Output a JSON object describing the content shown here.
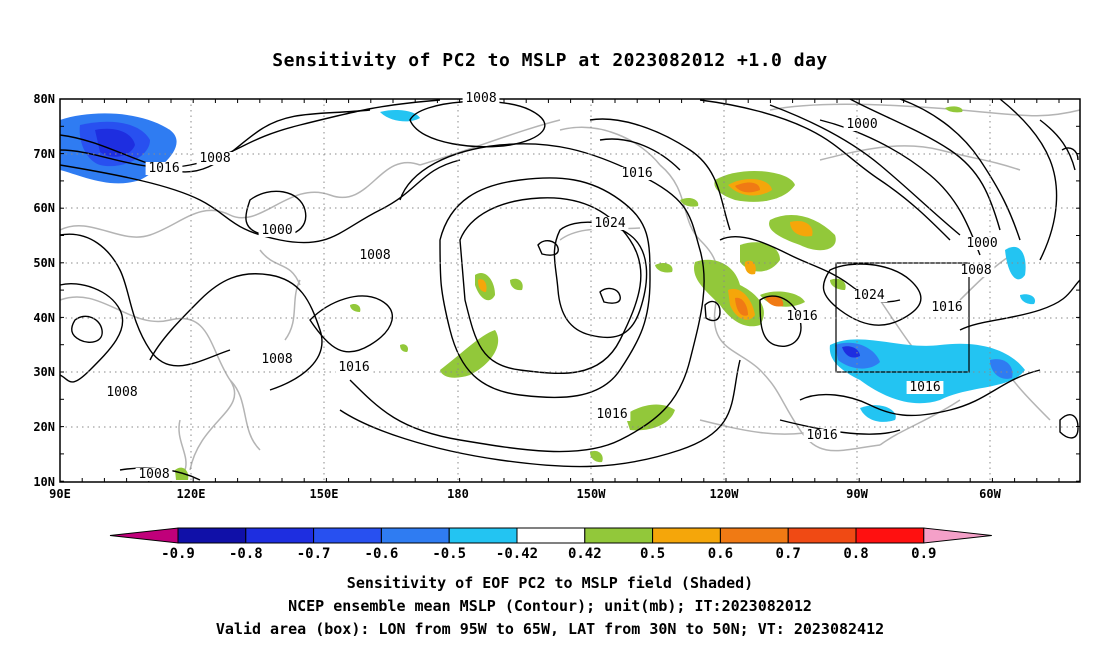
{
  "title": "Sensitivity of PC2 to MSLP at 2023082012 +1.0 day",
  "lat_labels": [
    "80N",
    "70N",
    "60N",
    "50N",
    "40N",
    "30N",
    "20N",
    "10N"
  ],
  "lon_labels": [
    "90E",
    "120E",
    "150E",
    "180",
    "150W",
    "120W",
    "90W",
    "60W"
  ],
  "contour_labels": [
    "1008",
    "1016",
    "1008",
    "1000",
    "1008",
    "1008",
    "1008",
    "1016",
    "1008",
    "1016",
    "1024",
    "1016",
    "1000",
    "1000",
    "1008",
    "1024",
    "1016",
    "1016",
    "1016",
    "1016"
  ],
  "colorbar": {
    "labels": [
      "-0.9",
      "-0.8",
      "-0.7",
      "-0.6",
      "-0.5",
      "-0.42",
      "0.42",
      "0.5",
      "0.6",
      "0.7",
      "0.8",
      "0.9"
    ],
    "colors": [
      "#c0007a",
      "#1010a8",
      "#1e2ee0",
      "#2850f0",
      "#2f7cf2",
      "#23c4f2",
      "#ffffff",
      "#92c83a",
      "#f5a60a",
      "#f07a14",
      "#f04a14",
      "#ff1010",
      "#f4a0c8"
    ]
  },
  "captions": [
    "Sensitivity of EOF PC2 to MSLP field (Shaded)",
    "NCEP ensemble mean MSLP (Contour); unit(mb); IT:2023082012",
    "Valid area (box): LON from 95W to 65W, LAT from 30N to 50N; VT: 2023082412"
  ]
}
